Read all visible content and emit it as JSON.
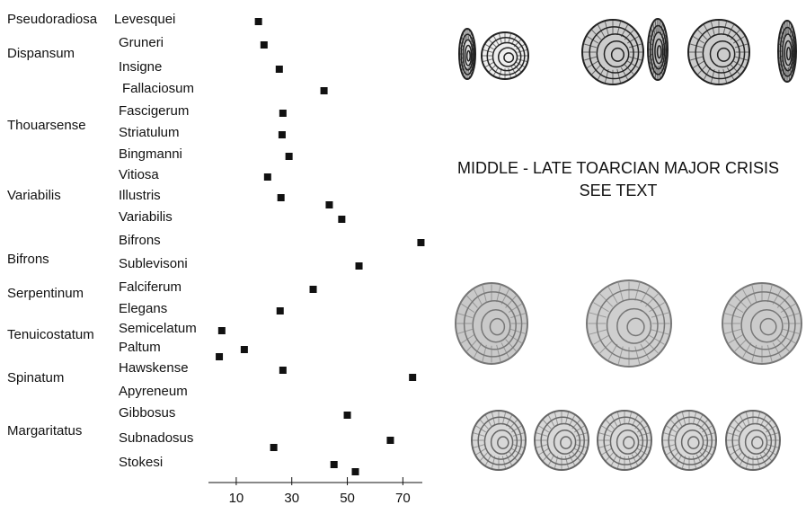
{
  "chart_data": {
    "type": "scatter",
    "zones": [
      "Pseudoradiosa",
      "Dispansum",
      "Thouarsense",
      "Variabilis",
      "Bifrons",
      "Serpentinum",
      "Tenuicostatum",
      "Spinatum",
      "Margaritatus"
    ],
    "categories": [
      "Levesquei",
      "Gruneri",
      "Insigne",
      "Fallaciosum",
      "Fascigerum",
      "Striatulum",
      "Bingmanni",
      "Vitiosa",
      "Illustris",
      "Variabilis",
      "Bifrons",
      "Sublevisoni",
      "Falciferum",
      "Elegans",
      "Semicelatum",
      "Paltum",
      "Hawskense",
      "Apyreneum",
      "Gibbosus",
      "Subnadosus",
      "Stokesi"
    ],
    "values": [
      [
        18
      ],
      [
        20
      ],
      [
        25.5
      ],
      [
        41.6
      ],
      [
        26.8
      ],
      [
        26.5
      ],
      [
        29
      ],
      [
        21.3
      ],
      [
        26.1,
        43.5
      ],
      [
        48
      ],
      [
        76.5
      ],
      [
        54.2
      ],
      [
        37.7
      ],
      [
        25.8
      ],
      [
        4.8
      ],
      [
        12.9,
        3.9
      ],
      [
        26.8,
        73.5
      ],
      [],
      [
        50
      ],
      [
        65.5,
        23.5
      ],
      [
        45.2,
        52.9
      ]
    ],
    "color": "#111111",
    "xlim": [
      0,
      77
    ],
    "xticks": [
      10,
      30,
      50,
      70
    ],
    "annotations": [
      "MIDDLE - LATE TOARCIAN MAJOR CRISIS",
      "SEE TEXT"
    ]
  }
}
